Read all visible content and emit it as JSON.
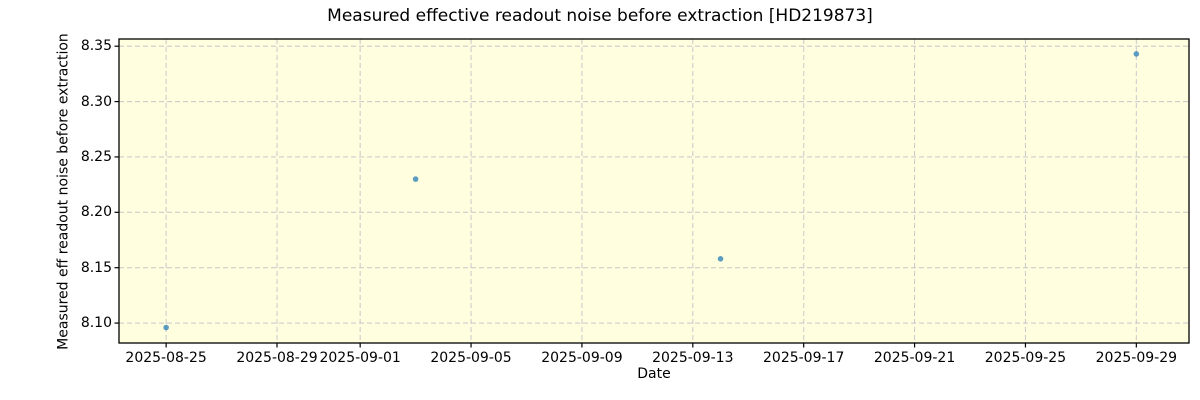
{
  "chart_data": {
    "type": "scatter",
    "title": "Measured effective readout noise before extraction [HD219873]",
    "xlabel": "Date",
    "ylabel": "Measured eff readout noise before extraction",
    "legend": "none",
    "grid": "dashed",
    "plot_background_color": "#ffffe0",
    "grid_color": "#cccccc",
    "spine_color": "#000000",
    "marker": {
      "shape": "circle",
      "color": "#1f77b4",
      "opacity": 0.72,
      "radius_px": 2.8
    },
    "x_epoch": "2025-08-25",
    "x_ticks": [
      "2025-08-25",
      "2025-08-29",
      "2025-09-01",
      "2025-09-05",
      "2025-09-09",
      "2025-09-13",
      "2025-09-17",
      "2025-09-21",
      "2025-09-25",
      "2025-09-29"
    ],
    "y_ticks": [
      "8.10",
      "8.15",
      "8.20",
      "8.25",
      "8.30",
      "8.35"
    ],
    "xlim_days": [
      -1.7,
      36.9
    ],
    "ylim": [
      8.082,
      8.3565
    ],
    "points": [
      {
        "date": "2025-08-25",
        "value": 8.096
      },
      {
        "date": "2025-09-03",
        "value": 8.23
      },
      {
        "date": "2025-09-14",
        "value": 8.158
      },
      {
        "date": "2025-09-29",
        "value": 8.343
      }
    ]
  }
}
